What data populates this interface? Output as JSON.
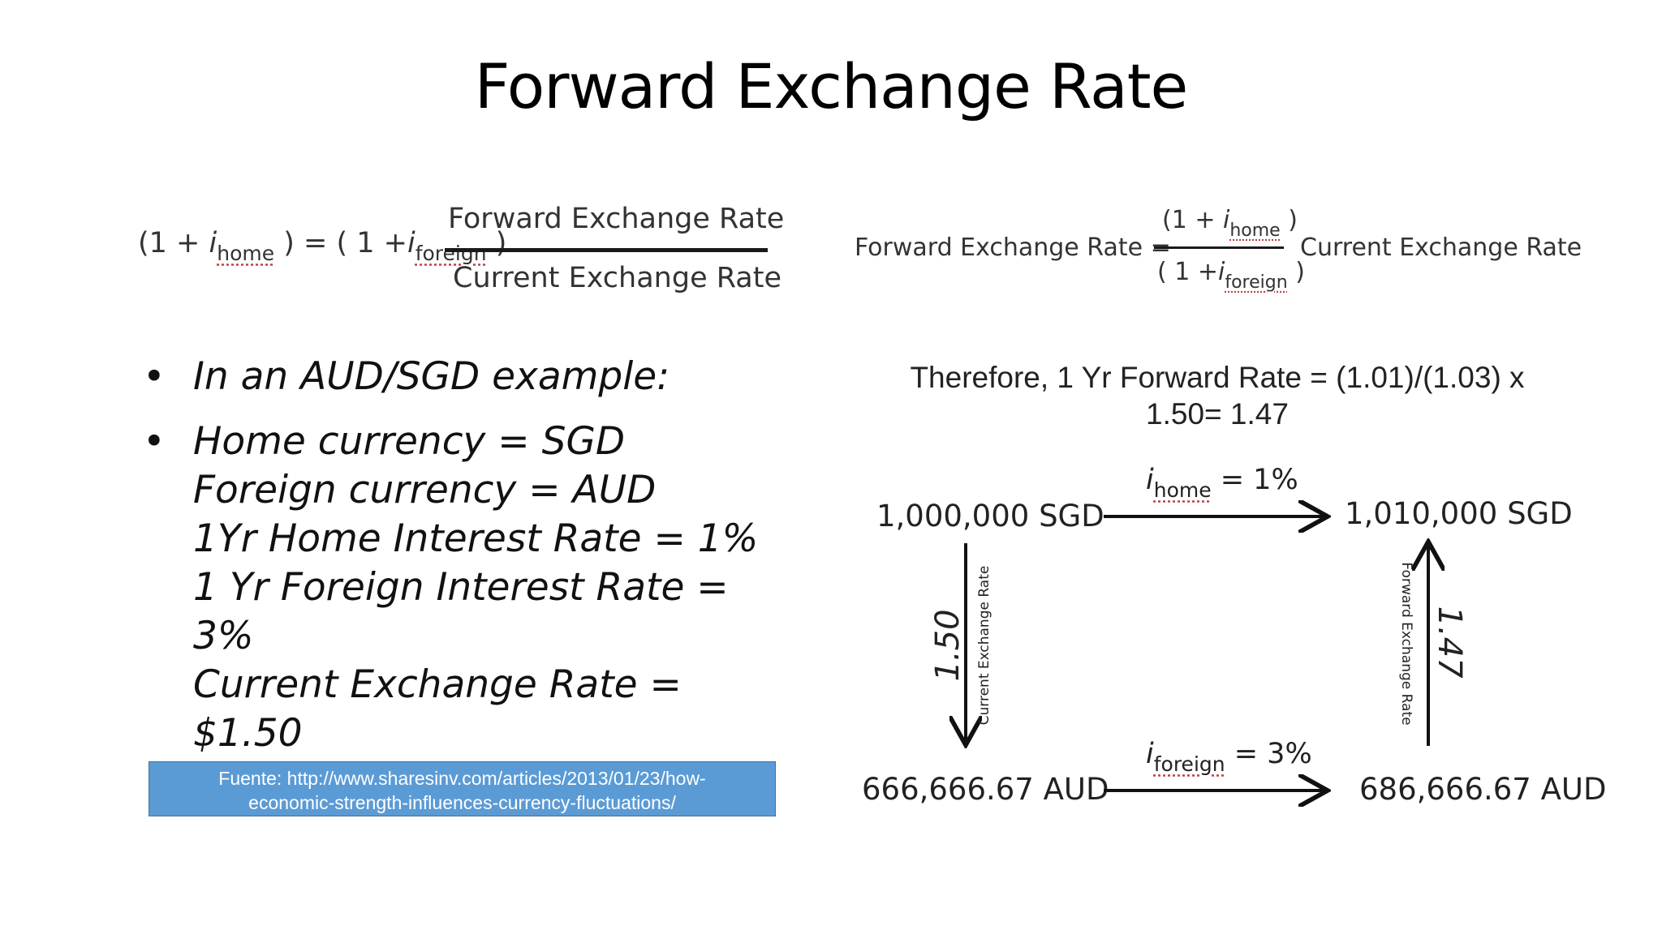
{
  "slide": {
    "title": "Forward Exchange Rate"
  },
  "formula_left": {
    "lhs_open": "(1 + ",
    "i": "i",
    "home_sub": "home",
    "mid": " ) = ( 1 +",
    "foreign_sub": "foreign",
    "close": " )",
    "numerator": "Forward Exchange Rate",
    "denominator": "Current Exchange Rate"
  },
  "formula_right": {
    "lhs": "Forward Exchange Rate =",
    "num_open": "(1 + ",
    "i": "i",
    "home_sub": "home",
    "num_close": " )",
    "den_open": "( 1 +",
    "foreign_sub": "foreign",
    "den_close": " )",
    "rhs": "Current Exchange Rate"
  },
  "bullets": {
    "item1": "In an AUD/SGD example:",
    "item2_line1": "Home currency = SGD",
    "item2_line2": "Foreign currency = AUD",
    "item2_line3": "1Yr Home Interest Rate = 1%",
    "item2_line4": "1 Yr Foreign Interest Rate = 3%",
    "item2_line5": "Current Exchange Rate = $1.50",
    "bullet_char": "•"
  },
  "source": {
    "line1": "Fuente: http://www.sharesinv.com/articles/2013/01/23/how-",
    "line2": "economic-strength-influences-currency-fluctuations/"
  },
  "therefore": {
    "line1": "Therefore, 1 Yr Forward Rate = (1.01)/(1.03) x",
    "line2": "1.50= 1.47"
  },
  "diagram": {
    "top_left": "1,000,000 SGD",
    "top_right": "1,010,000 SGD",
    "bottom_left": "666,666.67 AUD",
    "bottom_right": "686,666.67 AUD",
    "top_arrow_i": "i",
    "top_arrow_sub": "home",
    "top_arrow_val": " = 1%",
    "bottom_arrow_i": "i",
    "bottom_arrow_sub": "foreign",
    "bottom_arrow_val": " = 3%",
    "left_value": "1.50",
    "left_label": "Current Exchange Rate",
    "right_value": "1.47",
    "right_label": "Forward Exchange Rate"
  }
}
